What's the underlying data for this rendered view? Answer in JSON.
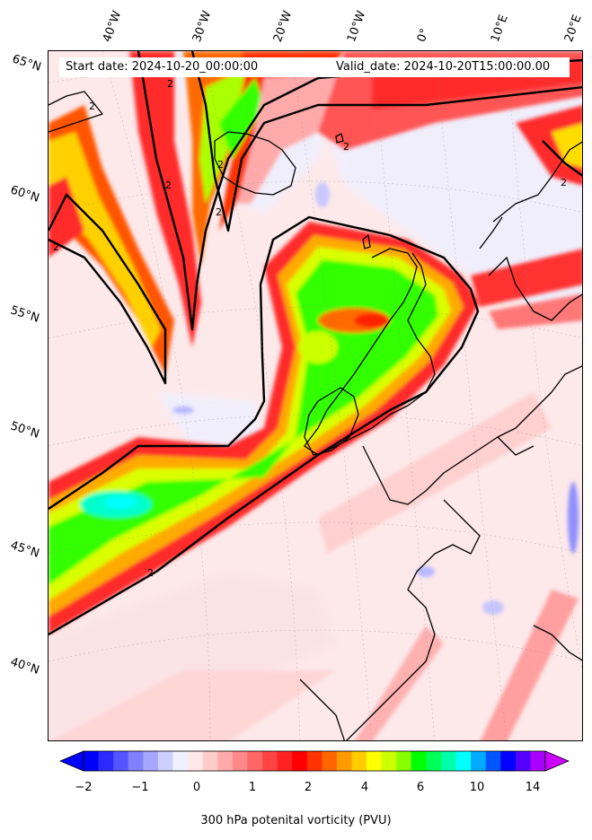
{
  "header": {
    "start_date": "Start date: 2024-10-20_00:00:00",
    "valid_date": "Valid_date: 2024-10-20T15:00:00.00"
  },
  "latitude_labels": [
    "65°N",
    "60°N",
    "55°N",
    "50°N",
    "45°N",
    "40°N"
  ],
  "longitude_labels": [
    "40°W",
    "30°W",
    "20°W",
    "10°W",
    "0°",
    "10°E",
    "20°E"
  ],
  "contour_label": "2",
  "colorbar": {
    "label": "300 hPa potenital vorticity (PVU)",
    "ticks": [
      "−2",
      "−1",
      "0",
      "1",
      "2",
      "4",
      "6",
      "10",
      "14"
    ],
    "colors": [
      "#0000ff",
      "#2a2aff",
      "#5555ff",
      "#7f7fff",
      "#a6a6ff",
      "#cfcfff",
      "#f0f0ff",
      "#ffe8e8",
      "#ffcccc",
      "#ffaaaa",
      "#ff8888",
      "#ff6666",
      "#ff4444",
      "#ff2222",
      "#ff0000",
      "#ff3300",
      "#ff6600",
      "#ff9900",
      "#ffcc00",
      "#ffff00",
      "#ccff00",
      "#88ff00",
      "#00ff00",
      "#00ff55",
      "#00ffaa",
      "#00ffff",
      "#00aaff",
      "#0055ff",
      "#0000ff",
      "#5500ff",
      "#aa00ff"
    ]
  },
  "colors": {
    "ocean_base": "#fde9ea",
    "coast": "#000000",
    "contour": "#000000"
  }
}
